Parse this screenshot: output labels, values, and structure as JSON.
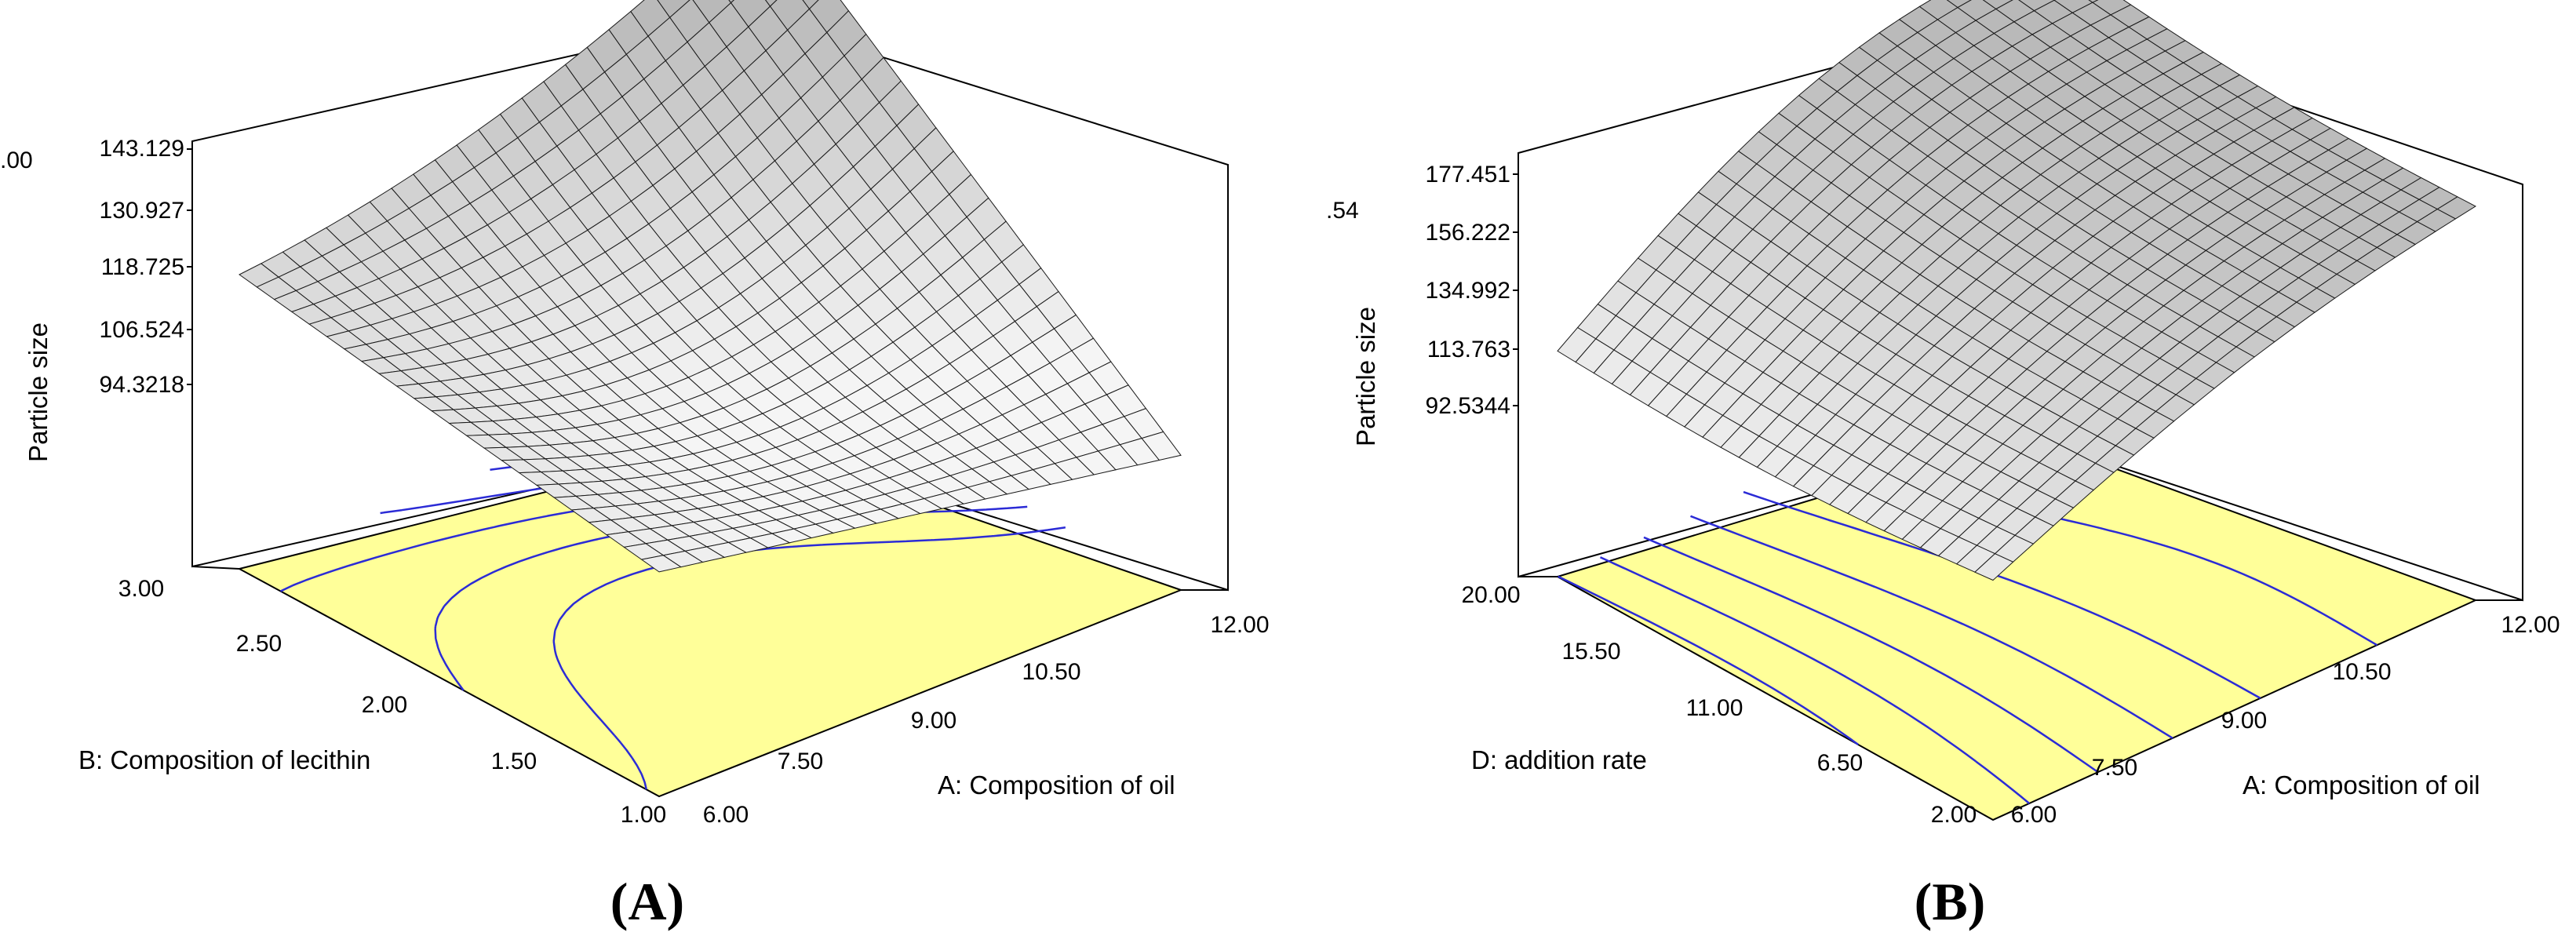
{
  "chart_data": [
    {
      "type": "surface",
      "panel_label": "(A)",
      "zlabel": "Particle size",
      "xlabel": "A: Composition of oil",
      "ylabel": "B: Composition of lecithin",
      "x_ticks": [
        "6.00",
        "7.50",
        "9.00",
        "10.50",
        "12.00"
      ],
      "y_ticks": [
        "1.00",
        "1.50",
        "2.00",
        "2.50",
        "3.00"
      ],
      "z_ticks": [
        "94.3218",
        "106.524",
        "118.725",
        "130.927",
        "143.129"
      ],
      "z_clipped_tick": ".00",
      "xlim": [
        6,
        12
      ],
      "ylim": [
        1,
        3
      ],
      "zlim": [
        94.3218,
        143.129
      ],
      "corner_values": {
        "x6_y1": 100,
        "x6_y3": 108,
        "x12_y1": 82,
        "x12_y3": 143
      },
      "floor_color": "#ffff99",
      "contour_color": "#2b2bd6",
      "surface_color": "#e9e9e9"
    },
    {
      "type": "surface",
      "panel_label": "(B)",
      "zlabel": "Particle size",
      "xlabel": "A: Composition of oil",
      "ylabel": "D: addition rate",
      "x_ticks": [
        "6.00",
        "7.50",
        "9.00",
        "10.50",
        "12.00"
      ],
      "y_ticks": [
        "2.00",
        "6.50",
        "11.00",
        "15.50",
        "20.00"
      ],
      "z_ticks": [
        "92.5344",
        "113.763",
        "134.992",
        "156.222",
        "177.451"
      ],
      "z_clipped_tick": ".54",
      "xlim": [
        6,
        12
      ],
      "ylim": [
        2,
        20
      ],
      "zlim": [
        92.5344,
        177.451
      ],
      "corner_values": {
        "x6_y2": 108,
        "x6_y20": 103,
        "x12_y2": 160,
        "x12_y20": 163
      },
      "floor_color": "#ffff99",
      "contour_color": "#2b2bd6",
      "surface_color": "#e9e9e9"
    }
  ]
}
